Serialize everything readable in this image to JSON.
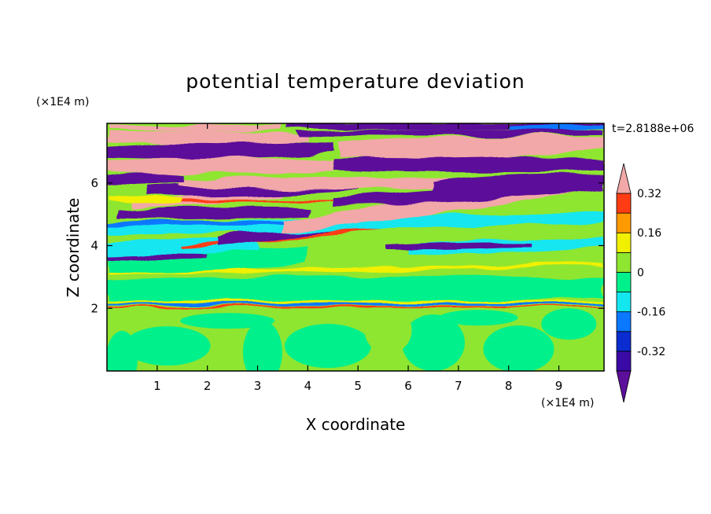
{
  "chart_data": {
    "type": "heatmap",
    "title": "potential temperature deviation",
    "xlabel": "X coordinate",
    "ylabel": "Z coordinate",
    "x_unit": "(×1E4 m)",
    "y_unit": "(×1E4 m)",
    "time_label": "t=2.8188e+06",
    "xlim": [
      0,
      9.9
    ],
    "ylim": [
      0,
      7.9
    ],
    "x_ticks": [
      1,
      2,
      3,
      4,
      5,
      6,
      7,
      8,
      9
    ],
    "y_ticks": [
      2,
      4,
      6
    ],
    "colorbar": {
      "levels": [
        -0.4,
        -0.32,
        -0.24,
        -0.16,
        -0.08,
        0,
        0.08,
        0.16,
        0.24,
        0.32,
        0.4
      ],
      "labels": [
        "0.32",
        "0.16",
        "0",
        "-0.16",
        "-0.32"
      ],
      "label_values": [
        0.32,
        0.16,
        0,
        -0.16,
        -0.32
      ],
      "colors_bottom_to_top": [
        "#5c0f9a",
        "#3a0aa6",
        "#0a2cd0",
        "#0a78ff",
        "#14e6f0",
        "#00f08c",
        "#8ee630",
        "#f0f000",
        "#ff9a00",
        "#ff3c14",
        "#f2a8a8"
      ]
    },
    "colors": {
      "strong_negative": "#5c0f9a",
      "near_zero": "#00f08c",
      "weak_positive": "#8ee630",
      "strong_positive": "#f2a8a8",
      "cyan": "#14e6f0",
      "blue": "#0a78ff",
      "yellow": "#f0f000",
      "red": "#ff3c14"
    },
    "layers": [
      {
        "z_range": [
          0,
          2.0
        ],
        "pattern": "cells",
        "values": [
          0.04,
          -0.02
        ]
      },
      {
        "z_range": [
          2.0,
          2.2
        ],
        "pattern": "thin bands",
        "values": [
          -0.16,
          0.32
        ]
      },
      {
        "z_range": [
          2.2,
          4.3
        ],
        "pattern": "wavy bands",
        "values": [
          0.04,
          0.16,
          -0.1
        ]
      },
      {
        "z_range": [
          4.3,
          7.9
        ],
        "pattern": "tilted strong bands",
        "values": [
          -0.4,
          0.4
        ]
      }
    ]
  }
}
